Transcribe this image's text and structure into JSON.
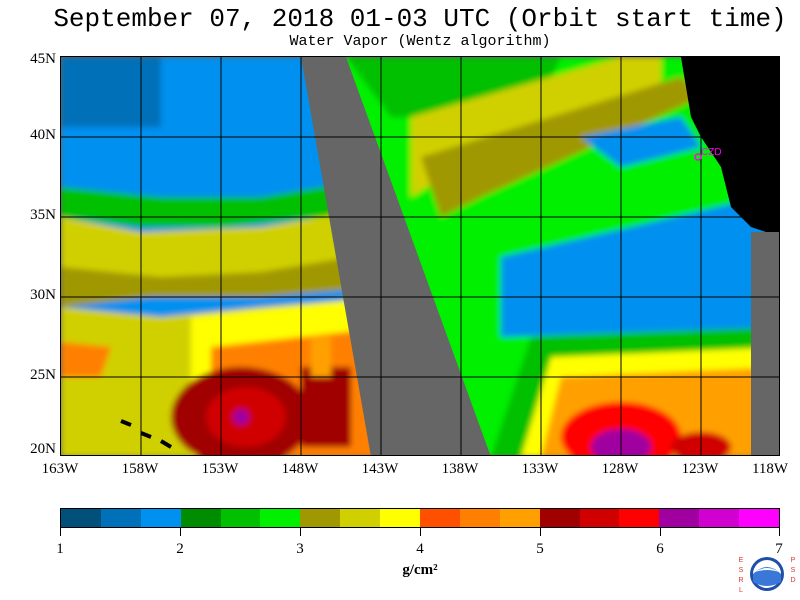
{
  "title": "September 07, 2018  01-03 UTC  (Orbit start time)",
  "subtitle": "Water Vapor (Wentz algorithm)",
  "station_label": "CZD",
  "lat_labels": [
    "45N",
    "40N",
    "35N",
    "30N",
    "25N",
    "20N"
  ],
  "lon_labels": [
    "163W",
    "158W",
    "153W",
    "148W",
    "143W",
    "138W",
    "133W",
    "128W",
    "123W",
    "118W"
  ],
  "colorbar": {
    "colors": [
      "#00507a",
      "#0070b8",
      "#0090f0",
      "#008c00",
      "#00c000",
      "#00f000",
      "#a09800",
      "#d0d000",
      "#ffff00",
      "#ff5000",
      "#ff8000",
      "#ffa000",
      "#a00000",
      "#d00000",
      "#ff0000",
      "#a000a0",
      "#d000d0",
      "#ff00ff"
    ],
    "tick_labels": [
      "1",
      "2",
      "3",
      "4",
      "5",
      "6",
      "7"
    ],
    "unit": "g/cm²"
  },
  "logo": {
    "left_letters": [
      "E",
      "S",
      "R",
      "L"
    ],
    "right_letters": [
      "P",
      "S",
      "D"
    ],
    "center_text": "NOAA"
  },
  "map_colors": {
    "land": "#000000",
    "no_data": "#666666",
    "grid": "#000000",
    "station": "#ff00ff"
  }
}
